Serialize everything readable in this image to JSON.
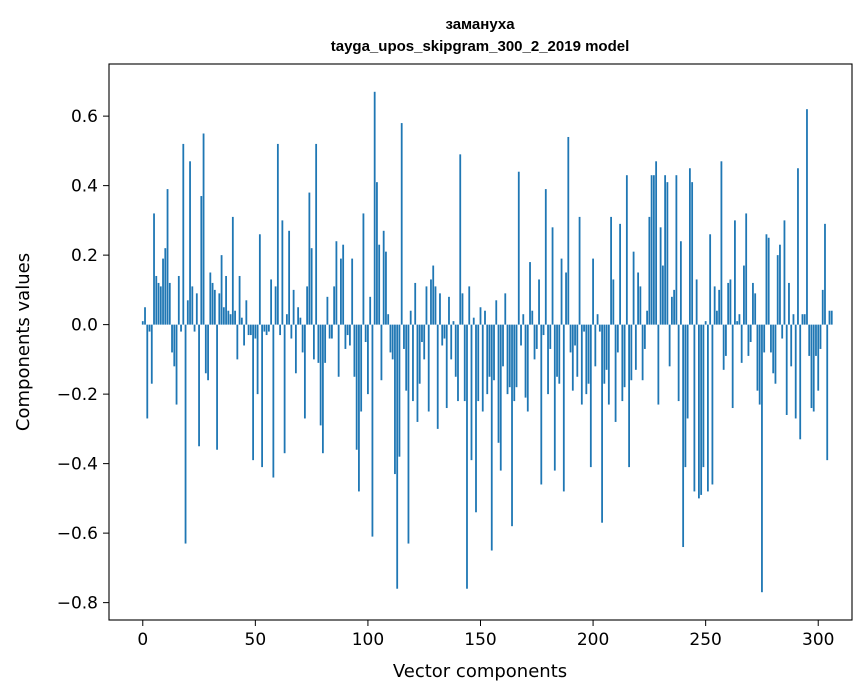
{
  "chart_data": {
    "type": "bar",
    "title": "заманухa",
    "subtitle": "tayga_upos_skipgram_300_2_2019 model",
    "xlabel": "Vector components",
    "ylabel": "Components values",
    "xlim": [
      -15,
      315
    ],
    "ylim": [
      -0.85,
      0.75
    ],
    "xticks": [
      0,
      50,
      100,
      150,
      200,
      250,
      300
    ],
    "yticks": [
      -0.8,
      -0.6,
      -0.4,
      -0.2,
      0.0,
      0.2,
      0.4,
      0.6
    ],
    "ytick_labels": [
      "−0.8",
      "−0.6",
      "−0.4",
      "−0.2",
      "0.0",
      "0.2",
      "0.4",
      "0.6"
    ],
    "xtick_labels": [
      "0",
      "50",
      "100",
      "150",
      "200",
      "250",
      "300"
    ],
    "bar_color": "#1f77b4",
    "series": [
      {
        "values": [
          0.01,
          0.05,
          -0.27,
          -0.02,
          -0.17,
          0.32,
          0.14,
          0.12,
          0.11,
          0.19,
          0.22,
          0.39,
          0.12,
          -0.08,
          -0.12,
          -0.23,
          0.14,
          -0.02,
          0.52,
          -0.63,
          0.07,
          0.47,
          0.11,
          -0.02,
          0.09,
          -0.35,
          0.37,
          0.55,
          -0.14,
          -0.16,
          0.15,
          0.12,
          0.1,
          -0.36,
          0.09,
          0.2,
          0.05,
          0.14,
          0.04,
          0.03,
          0.31,
          0.04,
          -0.1,
          0.14,
          0.02,
          -0.06,
          0.07,
          -0.03,
          -0.03,
          -0.39,
          -0.04,
          -0.2,
          0.26,
          -0.41,
          -0.02,
          -0.03,
          -0.02,
          0.13,
          -0.44,
          0.11,
          0.52,
          -0.03,
          0.3,
          -0.37,
          0.03,
          0.27,
          -0.04,
          0.1,
          -0.14,
          0.05,
          0.02,
          -0.08,
          -0.27,
          0.11,
          0.38,
          0.22,
          -0.1,
          0.52,
          -0.11,
          -0.29,
          -0.37,
          -0.11,
          0.08,
          -0.04,
          -0.04,
          0.11,
          0.24,
          -0.15,
          0.19,
          0.23,
          -0.07,
          -0.03,
          -0.06,
          0.19,
          -0.15,
          -0.36,
          -0.48,
          -0.25,
          0.32,
          -0.05,
          -0.2,
          0.08,
          -0.61,
          0.67,
          0.41,
          0.23,
          -0.16,
          0.27,
          0.21,
          0.03,
          -0.08,
          -0.1,
          -0.43,
          -0.76,
          -0.38,
          0.58,
          -0.07,
          -0.19,
          -0.63,
          0.04,
          -0.22,
          0.12,
          -0.28,
          -0.17,
          -0.05,
          -0.1,
          0.11,
          -0.25,
          0.13,
          0.17,
          0.11,
          -0.3,
          0.09,
          -0.06,
          -0.04,
          -0.24,
          0.08,
          -0.1,
          0.01,
          -0.15,
          -0.22,
          0.49,
          0.09,
          -0.22,
          -0.76,
          0.11,
          -0.39,
          0.02,
          -0.54,
          -0.22,
          0.05,
          -0.25,
          0.04,
          -0.2,
          -0.15,
          -0.65,
          -0.16,
          0.07,
          -0.34,
          -0.42,
          -0.12,
          0.09,
          -0.2,
          -0.18,
          -0.58,
          -0.22,
          -0.18,
          0.44,
          -0.06,
          0.03,
          -0.21,
          -0.25,
          0.18,
          0.04,
          -0.1,
          -0.07,
          0.13,
          -0.46,
          -0.03,
          0.39,
          -0.2,
          -0.07,
          0.28,
          -0.42,
          -0.15,
          -0.17,
          0.19,
          -0.48,
          0.15,
          0.54,
          -0.08,
          -0.19,
          -0.06,
          -0.15,
          0.31,
          -0.23,
          -0.02,
          -0.2,
          -0.17,
          -0.41,
          0.19,
          -0.12,
          0.03,
          -0.02,
          -0.57,
          -0.17,
          -0.13,
          -0.23,
          0.31,
          0.13,
          -0.28,
          -0.08,
          0.29,
          -0.22,
          -0.18,
          0.43,
          -0.41,
          -0.16,
          0.21,
          -0.13,
          0.15,
          0.11,
          -0.16,
          -0.07,
          0.04,
          0.31,
          0.43,
          0.43,
          0.47,
          -0.23,
          0.28,
          0.17,
          0.43,
          0.41,
          -0.12,
          0.08,
          0.1,
          0.43,
          -0.22,
          0.24,
          -0.64,
          -0.41,
          -0.27,
          0.45,
          0.41,
          -0.48,
          0.13,
          -0.5,
          -0.49,
          -0.41,
          0.01,
          -0.48,
          0.26,
          -0.46,
          0.11,
          0.04,
          0.1,
          0.47,
          -0.13,
          -0.09,
          0.12,
          0.13,
          -0.24,
          0.3,
          0.01,
          0.03,
          -0.11,
          0.17,
          0.32,
          -0.09,
          -0.05,
          0.12,
          0.09,
          -0.19,
          -0.23,
          -0.77,
          -0.08,
          0.26,
          0.25,
          -0.08,
          -0.14,
          -0.17,
          0.2,
          0.23,
          -0.04,
          0.3,
          -0.26,
          0.12,
          -0.12,
          0.03,
          -0.27,
          0.45,
          -0.33,
          0.03,
          0.03,
          0.62,
          -0.09,
          -0.24,
          -0.25,
          -0.09,
          -0.19,
          -0.07,
          0.1,
          0.29,
          -0.39,
          0.04,
          0.04
        ]
      }
    ]
  }
}
